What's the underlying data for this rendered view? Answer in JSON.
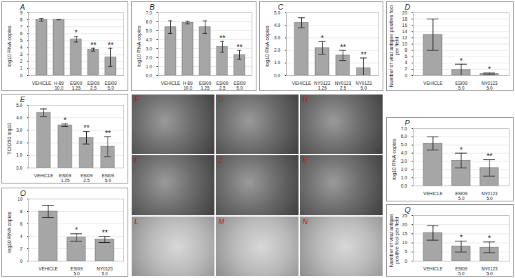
{
  "chart_data": [
    {
      "panel": "A",
      "type": "bar",
      "y_label": "log10 RNA copies",
      "categories": [
        "VEHICLE",
        "H-89\n10.0",
        "ESI09\n1.25",
        "ESI09\n2.5",
        "ESI09\n5.0"
      ],
      "values": [
        8.0,
        8.0,
        5.2,
        3.7,
        2.6
      ],
      "errors": [
        0.2,
        0.0,
        0.4,
        0.2,
        1.3
      ],
      "significance": [
        null,
        null,
        "*",
        "**",
        "**"
      ],
      "ylim": [
        0,
        9
      ],
      "yticks": [
        0,
        1,
        2,
        3,
        4,
        5,
        6,
        7,
        8,
        9
      ],
      "grid": true,
      "color": "#a6a6a6"
    },
    {
      "panel": "B",
      "type": "bar",
      "y_label": "log10 RNA copies",
      "categories": [
        "VEHICLE",
        "H-89\n10.0",
        "ESI09\n1.25",
        "ESI09\n2.5",
        "ESI09\n5.0"
      ],
      "values": [
        5.4,
        5.9,
        5.4,
        3.2,
        2.3
      ],
      "errors": [
        0.7,
        0.15,
        0.7,
        0.6,
        0.5
      ],
      "significance": [
        null,
        null,
        null,
        "**",
        "**"
      ],
      "ylim": [
        0,
        7
      ],
      "yticks": [
        0,
        1,
        2,
        3,
        4,
        5,
        6,
        7
      ],
      "grid": true,
      "color": "#a6a6a6"
    },
    {
      "panel": "C",
      "type": "bar",
      "y_label": "log10 RNA copies",
      "categories": [
        "VEHICLE",
        "NY0123\n1.25",
        "NY0123\n2.5",
        "NY0123\n5.0"
      ],
      "values": [
        4.2,
        2.2,
        1.6,
        0.6
      ],
      "errors": [
        0.4,
        0.5,
        0.4,
        0.8
      ],
      "significance": [
        null,
        "*",
        "**",
        "**"
      ],
      "ylim": [
        0,
        5
      ],
      "yticks": [
        0,
        1,
        2,
        3,
        4,
        5
      ],
      "grid": true,
      "color": "#a6a6a6"
    },
    {
      "panel": "D",
      "type": "bar",
      "y_label": "Number of viral antigen positive foci per field",
      "categories": [
        "VEHICLE",
        "ESI09\n5.0",
        "NY0123\n5.0"
      ],
      "values": [
        13.0,
        1.8,
        0.5
      ],
      "errors": [
        5.0,
        1.8,
        0.3
      ],
      "significance": [
        null,
        "*",
        "*"
      ],
      "ylim": [
        0,
        20
      ],
      "yticks": [
        0,
        2,
        4,
        6,
        8,
        10,
        12,
        14,
        16,
        18,
        20
      ],
      "grid": true,
      "color": "#a6a6a6"
    },
    {
      "panel": "E",
      "type": "bar",
      "y_label": "TCID50 log10",
      "categories": [
        "VEHICLE",
        "ESI09\n1.25",
        "ESI09\n2.5",
        "ESI09\n5.0"
      ],
      "values": [
        4.4,
        3.4,
        2.4,
        1.7
      ],
      "errors": [
        0.3,
        0.1,
        0.5,
        0.8
      ],
      "significance": [
        null,
        "*",
        "**",
        "**"
      ],
      "ylim": [
        0,
        5
      ],
      "yticks": [
        0,
        1,
        2,
        3,
        4,
        5
      ],
      "grid": true,
      "color": "#a6a6a6"
    },
    {
      "panel": "O",
      "type": "bar",
      "y_label": "log10 RNA copies",
      "categories": [
        "VEHICLE",
        "ESI09\n5.0",
        "NY0123\n5.0"
      ],
      "values": [
        8.0,
        3.8,
        3.5
      ],
      "errors": [
        1.0,
        0.6,
        0.5
      ],
      "significance": [
        null,
        "*",
        "**"
      ],
      "ylim": [
        0,
        10
      ],
      "yticks": [
        0,
        2,
        4,
        6,
        8,
        10
      ],
      "grid": true,
      "color": "#a6a6a6"
    },
    {
      "panel": "P",
      "type": "bar",
      "y_label": "log10 RNA copies",
      "categories": [
        "VEHICLE",
        "ESI09\n5.0",
        "NY0123\n5.0"
      ],
      "values": [
        5.2,
        3.1,
        2.2
      ],
      "errors": [
        0.8,
        0.9,
        1.0
      ],
      "significance": [
        null,
        "*",
        "**"
      ],
      "ylim": [
        0,
        7
      ],
      "yticks": [
        0,
        1,
        2,
        3,
        4,
        5,
        6,
        7
      ],
      "grid": true,
      "color": "#a6a6a6"
    },
    {
      "panel": "Q",
      "type": "bar",
      "y_label": "Number of viral antigen positive foci per field",
      "categories": [
        "VEHICLE",
        "ESI09\n5.0",
        "NY0123\n5.0"
      ],
      "values": [
        15.5,
        8.0,
        7.5
      ],
      "errors": [
        4.0,
        3.0,
        3.0
      ],
      "significance": [
        null,
        "*",
        "*"
      ],
      "ylim": [
        0,
        25
      ],
      "yticks": [
        0,
        5,
        10,
        15,
        20,
        25
      ],
      "grid": true,
      "color": "#a6a6a6"
    }
  ],
  "micrograph_panels": [
    "F",
    "G",
    "H",
    "I",
    "J",
    "K",
    "L",
    "M",
    "N"
  ]
}
